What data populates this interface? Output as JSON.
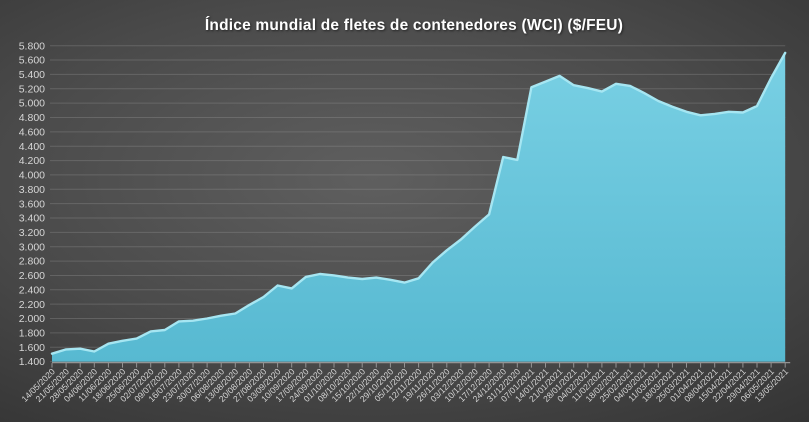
{
  "title": "Índice mundial de fletes de contenedores (WCI) ($/FEU)",
  "chart_data": {
    "type": "area",
    "title": "Índice mundial de fletes de contenedores (WCI) ($/FEU)",
    "xlabel": "",
    "ylabel": "",
    "ylim": [
      1400,
      5800
    ],
    "ytick_step": 200,
    "yticks": [
      "1.400",
      "1.600",
      "1.800",
      "2.000",
      "2.200",
      "2.400",
      "2.600",
      "2.800",
      "3.000",
      "3.200",
      "3.400",
      "3.600",
      "3.800",
      "4.000",
      "4.200",
      "4.400",
      "4.600",
      "4.800",
      "5.000",
      "5.200",
      "5.400",
      "5.600",
      "5.800"
    ],
    "grid": true,
    "legend": "none",
    "x": [
      "14/05/2020",
      "21/05/2020",
      "28/05/2020",
      "04/06/2020",
      "11/06/2020",
      "18/06/2020",
      "25/06/2020",
      "02/07/2020",
      "09/07/2020",
      "16/07/2020",
      "23/07/2020",
      "30/07/2020",
      "06/08/2020",
      "13/08/2020",
      "20/08/2020",
      "27/08/2020",
      "03/09/2020",
      "10/09/2020",
      "17/09/2020",
      "24/09/2020",
      "01/10/2020",
      "08/10/2020",
      "15/10/2020",
      "22/10/2020",
      "29/10/2020",
      "05/11/2020",
      "12/11/2020",
      "19/11/2020",
      "26/11/2020",
      "03/12/2020",
      "10/12/2020",
      "17/12/2020",
      "24/12/2020",
      "31/12/2020",
      "07/01/2021",
      "14/01/2021",
      "21/01/2021",
      "28/01/2021",
      "04/02/2021",
      "11/02/2021",
      "18/02/2021",
      "25/02/2021",
      "04/03/2021",
      "11/03/2021",
      "18/03/2021",
      "25/03/2021",
      "01/04/2021",
      "08/04/2021",
      "15/04/2021",
      "22/04/2021",
      "29/04/2021",
      "06/05/2021",
      "13/05/2021"
    ],
    "values": [
      1510,
      1570,
      1580,
      1540,
      1650,
      1690,
      1720,
      1820,
      1840,
      1960,
      1970,
      2000,
      2040,
      2070,
      2190,
      2300,
      2460,
      2420,
      2580,
      2620,
      2600,
      2570,
      2550,
      2570,
      2540,
      2500,
      2560,
      2780,
      2950,
      3100,
      3280,
      3450,
      4250,
      4210,
      5220,
      5300,
      5380,
      5250,
      5210,
      5160,
      5270,
      5240,
      5140,
      5030,
      4950,
      4880,
      4830,
      4850,
      4880,
      4870,
      4960,
      5350,
      5700
    ],
    "colors": {
      "area_fill_top": "#79d0e4",
      "area_fill_bottom": "#57b9d1",
      "area_edge": "#a6e6f2",
      "grid": "#9a9a9a",
      "axis": "#a8a8a8",
      "tick_label": "#d6d6d6",
      "title": "#ffffff"
    }
  }
}
